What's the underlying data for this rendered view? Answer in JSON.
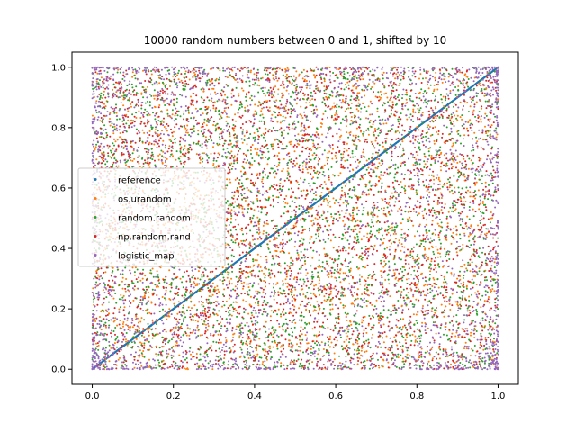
{
  "chart_data": {
    "type": "scatter",
    "title": "10000 random numbers between 0 and 1, shifted by 10",
    "xlabel": "",
    "ylabel": "",
    "xlim": [
      -0.05,
      1.05
    ],
    "ylim": [
      -0.05,
      1.05
    ],
    "x_ticks": [
      "0.0",
      "0.2",
      "0.4",
      "0.6",
      "0.8",
      "1.0"
    ],
    "y_ticks": [
      "0.0",
      "0.2",
      "0.4",
      "0.6",
      "0.8",
      "1.0"
    ],
    "grid": false,
    "legend_position": "center-left",
    "series": [
      {
        "name": "reference",
        "color": "#1f77b4",
        "pattern": "diagonal y = x",
        "points": 10000
      },
      {
        "name": "os.urandom",
        "color": "#ff7f0e",
        "pattern": "uniform on [0,1]²",
        "points": 10000
      },
      {
        "name": "random.random",
        "color": "#2ca02c",
        "pattern": "uniform on [0,1]²",
        "points": 10000
      },
      {
        "name": "np.random.rand",
        "color": "#d62728",
        "pattern": "uniform on [0,1]²",
        "points": 10000
      },
      {
        "name": "logistic_map",
        "color": "#9467bd",
        "pattern": "concentrated near 0 and 1 edges",
        "points": 10000
      }
    ]
  }
}
